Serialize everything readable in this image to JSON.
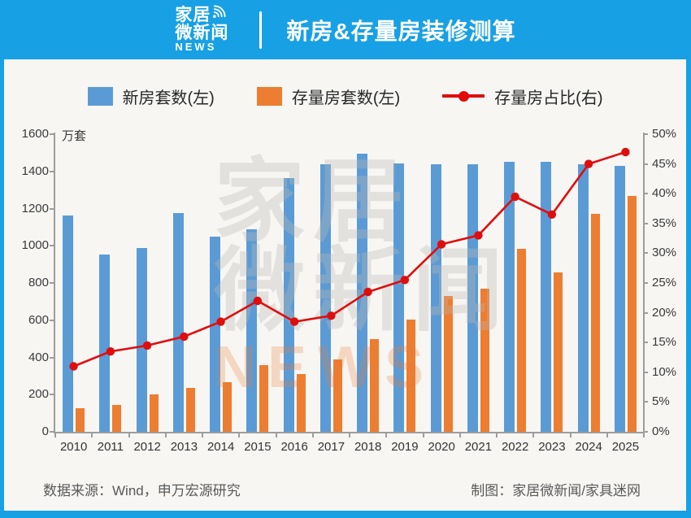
{
  "header": {
    "logo": {
      "line1": "家居",
      "line2": "微新闻",
      "line3": "NEWS"
    },
    "title": "新房&存量房装修测算"
  },
  "theme": {
    "header_bg": "#18a0e4",
    "bar_blue": "#5B9BD5",
    "bar_orange": "#ED7D31",
    "line_red": "#E00D0D",
    "axis_gray": "#9D9D9D"
  },
  "watermark": {
    "line1": "家居",
    "line2": "微新闻",
    "line3": "NEWS"
  },
  "footer": {
    "source": "数据来源：Wind，申万宏源研究",
    "credit": "制图：家居微新闻/家具迷网"
  },
  "chart_data": {
    "type": "bar",
    "title": "新房&存量房装修测算",
    "categories": [
      "2010",
      "2011",
      "2012",
      "2013",
      "2014",
      "2015",
      "2016",
      "2017",
      "2018",
      "2019",
      "2020",
      "2021",
      "2022",
      "2023",
      "2024",
      "2025"
    ],
    "series": [
      {
        "name": "新房套数(左)",
        "kind": "bar",
        "axis": "left",
        "color": "#5B9BD5",
        "values": [
          1165,
          955,
          990,
          1175,
          1050,
          1090,
          1365,
          1440,
          1495,
          1445,
          1440,
          1440,
          1450,
          1450,
          1440,
          1430
        ]
      },
      {
        "name": "存量房套数(左)",
        "kind": "bar",
        "axis": "left",
        "color": "#ED7D31",
        "values": [
          125,
          145,
          200,
          235,
          265,
          360,
          310,
          390,
          500,
          605,
          730,
          770,
          985,
          855,
          1170,
          1270
        ]
      },
      {
        "name": "存量房占比(右)",
        "kind": "line",
        "axis": "right",
        "color": "#E00D0D",
        "values": [
          11,
          13.5,
          14.5,
          16,
          18.5,
          22,
          18.5,
          19.5,
          23.5,
          25.5,
          31.5,
          33,
          39.5,
          36.5,
          45,
          47
        ]
      }
    ],
    "left_axis": {
      "unit": "万套",
      "min": 0,
      "max": 1600,
      "step": 200
    },
    "right_axis": {
      "min": 0,
      "max": 50,
      "step": 5,
      "suffix": "%"
    },
    "grid": false,
    "legend_position": "top"
  }
}
